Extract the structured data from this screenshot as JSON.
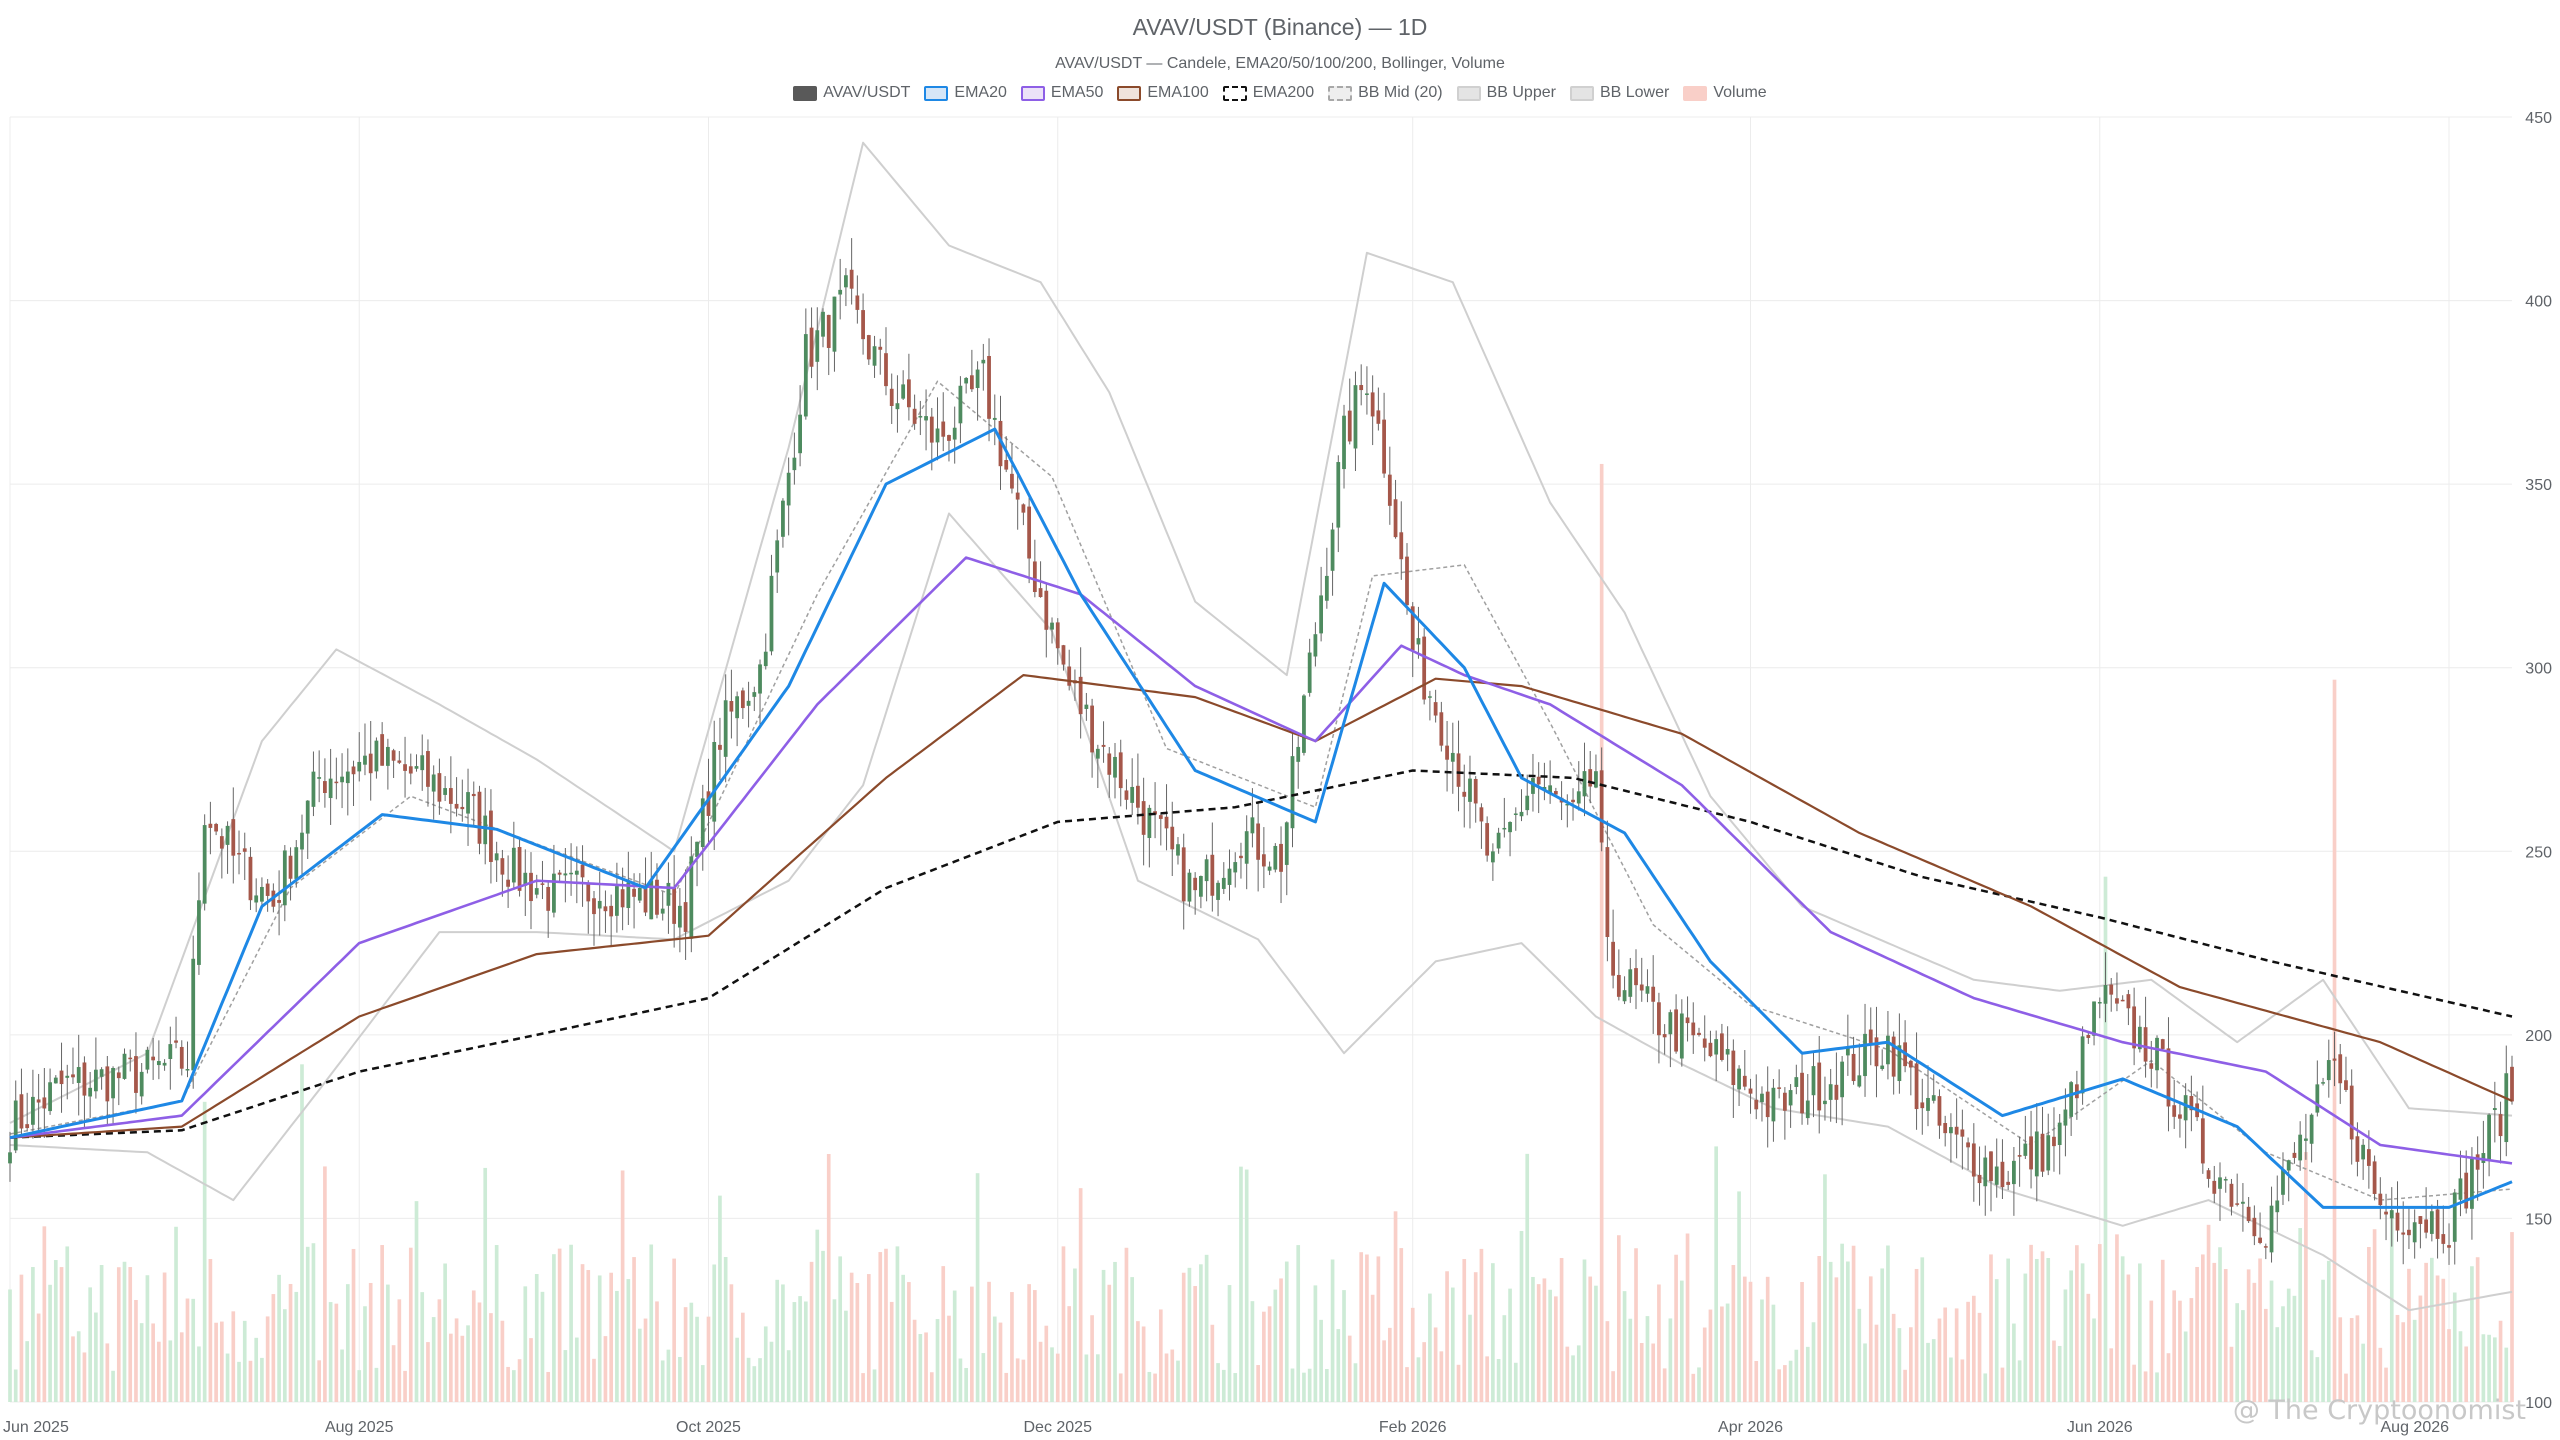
{
  "title": "AVAV/USDT (Binance) — 1D",
  "subtitle": "AVAV/USDT — Candele, EMA20/50/100/200, Bollinger, Volume",
  "watermark": "@ The Cryptoonomist",
  "legend": [
    {
      "label": "AVAV/USDT",
      "kind": "candles",
      "color": "#595959",
      "border": "#595959",
      "dashed": false
    },
    {
      "label": "EMA20",
      "kind": "line",
      "color": "#d6e6f7",
      "border": "#1e88e5",
      "dashed": false
    },
    {
      "label": "EMA50",
      "kind": "line",
      "color": "#ece2f8",
      "border": "#8e5fe6",
      "dashed": false
    },
    {
      "label": "EMA100",
      "kind": "line",
      "color": "#efe3dc",
      "border": "#8b4a2b",
      "dashed": false
    },
    {
      "label": "EMA200",
      "kind": "line",
      "color": "#ffffff",
      "border": "#111111",
      "dashed": true
    },
    {
      "label": "BB Mid (20)",
      "kind": "line",
      "color": "#eeeeee",
      "border": "#a8a8a8",
      "dashed": true
    },
    {
      "label": "BB Upper",
      "kind": "line",
      "color": "#e4e4e4",
      "border": "#d0d0d0",
      "dashed": false
    },
    {
      "label": "BB Lower",
      "kind": "line",
      "color": "#e4e4e4",
      "border": "#d0d0d0",
      "dashed": false
    },
    {
      "label": "Volume",
      "kind": "bar",
      "color": "#f9cfc8",
      "border": "#f9cfc8",
      "dashed": false
    }
  ],
  "colors": {
    "up": "#4e8b5f",
    "down": "#a5574a",
    "wick": "#666666",
    "volume_up": "#cdebd6",
    "volume_down": "#f9cfc8",
    "ema20": "#1e88e5",
    "ema50": "#8e5fe6",
    "ema100": "#8b4a2b",
    "ema200": "#111111",
    "bb_mid": "#a0a0a0",
    "bb_band": "#cfcfcf",
    "grid": "#ececec",
    "axis_text": "#5f6368"
  },
  "chart_data": {
    "type": "candlestick",
    "x_axis": {
      "type": "date",
      "start": "2025-06-01",
      "end": "2026-08-12",
      "tick_labels": [
        "Jun 2025",
        "Aug 2025",
        "Oct 2025",
        "Dec 2025",
        "Feb 2026",
        "Apr 2026",
        "Jun 2026",
        "Aug 2026"
      ]
    },
    "y_axis": {
      "position": "right",
      "ylim": [
        100,
        450
      ],
      "ticks": [
        100,
        150,
        200,
        250,
        300,
        350,
        400,
        450
      ]
    },
    "grid": true,
    "legend_position": "top-center",
    "price_path": [
      [
        "2025-06-01",
        175
      ],
      [
        "2025-06-10",
        186
      ],
      [
        "2025-06-25",
        190
      ],
      [
        "2025-07-02",
        193
      ],
      [
        "2025-07-05",
        262
      ],
      [
        "2025-07-10",
        248
      ],
      [
        "2025-07-17",
        236
      ],
      [
        "2025-07-25",
        270
      ],
      [
        "2025-08-03",
        275
      ],
      [
        "2025-08-12",
        270
      ],
      [
        "2025-08-20",
        262
      ],
      [
        "2025-08-28",
        244
      ],
      [
        "2025-09-04",
        238
      ],
      [
        "2025-09-12",
        240
      ],
      [
        "2025-09-20",
        237
      ],
      [
        "2025-09-27",
        235
      ],
      [
        "2025-10-03",
        282
      ],
      [
        "2025-10-10",
        300
      ],
      [
        "2025-10-18",
        385
      ],
      [
        "2025-10-25",
        400
      ],
      [
        "2025-11-02",
        375
      ],
      [
        "2025-11-10",
        362
      ],
      [
        "2025-11-18",
        378
      ],
      [
        "2025-11-26",
        330
      ],
      [
        "2025-12-03",
        295
      ],
      [
        "2025-12-10",
        275
      ],
      [
        "2025-12-17",
        258
      ],
      [
        "2025-12-25",
        238
      ],
      [
        "2026-01-02",
        255
      ],
      [
        "2026-01-09",
        248
      ],
      [
        "2026-01-13",
        290
      ],
      [
        "2026-01-20",
        362
      ],
      [
        "2026-01-24",
        380
      ],
      [
        "2026-01-28",
        350
      ],
      [
        "2026-02-01",
        305
      ],
      [
        "2026-02-08",
        278
      ],
      [
        "2026-02-15",
        245
      ],
      [
        "2026-02-22",
        270
      ],
      [
        "2026-03-01",
        258
      ],
      [
        "2026-03-05",
        272
      ],
      [
        "2026-03-07",
        220
      ],
      [
        "2026-03-15",
        205
      ],
      [
        "2026-03-25",
        195
      ],
      [
        "2026-04-05",
        180
      ],
      [
        "2026-04-15",
        188
      ],
      [
        "2026-04-25",
        198
      ],
      [
        "2026-05-05",
        172
      ],
      [
        "2026-05-15",
        162
      ],
      [
        "2026-05-25",
        172
      ],
      [
        "2026-06-01",
        210
      ],
      [
        "2026-06-10",
        196
      ],
      [
        "2026-06-20",
        165
      ],
      [
        "2026-06-30",
        148
      ],
      [
        "2026-07-06",
        170
      ],
      [
        "2026-07-12",
        190
      ],
      [
        "2026-07-20",
        153
      ],
      [
        "2026-08-01",
        149
      ],
      [
        "2026-08-12",
        186
      ]
    ],
    "ema20_path": [
      [
        "2025-06-01",
        172
      ],
      [
        "2025-07-01",
        182
      ],
      [
        "2025-07-15",
        235
      ],
      [
        "2025-08-05",
        260
      ],
      [
        "2025-08-25",
        256
      ],
      [
        "2025-09-20",
        240
      ],
      [
        "2025-10-15",
        295
      ],
      [
        "2025-11-01",
        350
      ],
      [
        "2025-11-20",
        365
      ],
      [
        "2025-12-05",
        320
      ],
      [
        "2025-12-25",
        272
      ],
      [
        "2026-01-15",
        258
      ],
      [
        "2026-01-27",
        323
      ],
      [
        "2026-02-10",
        300
      ],
      [
        "2026-02-20",
        270
      ],
      [
        "2026-03-10",
        255
      ],
      [
        "2026-03-25",
        220
      ],
      [
        "2026-04-10",
        195
      ],
      [
        "2026-04-25",
        198
      ],
      [
        "2026-05-15",
        178
      ],
      [
        "2026-06-05",
        188
      ],
      [
        "2026-06-25",
        175
      ],
      [
        "2026-07-10",
        153
      ],
      [
        "2026-08-01",
        153
      ],
      [
        "2026-08-12",
        160
      ]
    ],
    "ema50_path": [
      [
        "2025-06-01",
        172
      ],
      [
        "2025-07-01",
        178
      ],
      [
        "2025-08-01",
        225
      ],
      [
        "2025-09-01",
        242
      ],
      [
        "2025-09-25",
        240
      ],
      [
        "2025-10-20",
        290
      ],
      [
        "2025-11-15",
        330
      ],
      [
        "2025-12-05",
        320
      ],
      [
        "2025-12-25",
        295
      ],
      [
        "2026-01-15",
        280
      ],
      [
        "2026-01-30",
        306
      ],
      [
        "2026-02-10",
        298
      ],
      [
        "2026-02-25",
        290
      ],
      [
        "2026-03-20",
        268
      ],
      [
        "2026-04-15",
        228
      ],
      [
        "2026-05-10",
        210
      ],
      [
        "2026-06-05",
        198
      ],
      [
        "2026-06-30",
        190
      ],
      [
        "2026-07-20",
        170
      ],
      [
        "2026-08-12",
        165
      ]
    ],
    "ema100_path": [
      [
        "2025-06-01",
        172
      ],
      [
        "2025-07-01",
        175
      ],
      [
        "2025-08-01",
        205
      ],
      [
        "2025-09-01",
        222
      ],
      [
        "2025-10-01",
        227
      ],
      [
        "2025-11-01",
        270
      ],
      [
        "2025-11-25",
        298
      ],
      [
        "2025-12-25",
        292
      ],
      [
        "2026-01-15",
        280
      ],
      [
        "2026-02-05",
        297
      ],
      [
        "2026-02-20",
        295
      ],
      [
        "2026-03-20",
        282
      ],
      [
        "2026-04-20",
        255
      ],
      [
        "2026-05-20",
        235
      ],
      [
        "2026-06-15",
        213
      ],
      [
        "2026-07-20",
        198
      ],
      [
        "2026-08-12",
        182
      ]
    ],
    "ema200_path": [
      [
        "2025-06-01",
        172
      ],
      [
        "2025-07-01",
        174
      ],
      [
        "2025-08-01",
        190
      ],
      [
        "2025-09-01",
        200
      ],
      [
        "2025-10-01",
        210
      ],
      [
        "2025-11-01",
        240
      ],
      [
        "2025-12-01",
        258
      ],
      [
        "2026-01-01",
        262
      ],
      [
        "2026-02-01",
        272
      ],
      [
        "2026-03-01",
        270
      ],
      [
        "2026-04-01",
        258
      ],
      [
        "2026-05-01",
        243
      ],
      [
        "2026-06-01",
        232
      ],
      [
        "2026-07-01",
        220
      ],
      [
        "2026-08-12",
        205
      ]
    ],
    "bb_mid_path": [
      [
        "2025-06-01",
        173
      ],
      [
        "2025-07-01",
        182
      ],
      [
        "2025-07-20",
        240
      ],
      [
        "2025-08-10",
        265
      ],
      [
        "2025-09-01",
        252
      ],
      [
        "2025-09-25",
        238
      ],
      [
        "2025-10-20",
        320
      ],
      [
        "2025-11-10",
        378
      ],
      [
        "2025-11-30",
        352
      ],
      [
        "2025-12-20",
        278
      ],
      [
        "2026-01-15",
        262
      ],
      [
        "2026-01-25",
        325
      ],
      [
        "2026-02-10",
        328
      ],
      [
        "2026-02-25",
        285
      ],
      [
        "2026-03-15",
        230
      ],
      [
        "2026-04-01",
        208
      ],
      [
        "2026-04-25",
        196
      ],
      [
        "2026-05-20",
        170
      ],
      [
        "2026-06-10",
        193
      ],
      [
        "2026-06-30",
        168
      ],
      [
        "2026-07-20",
        155
      ],
      [
        "2026-08-12",
        158
      ]
    ],
    "bb_upper_path": [
      [
        "2025-06-01",
        176
      ],
      [
        "2025-06-25",
        195
      ],
      [
        "2025-07-15",
        280
      ],
      [
        "2025-07-28",
        305
      ],
      [
        "2025-08-15",
        290
      ],
      [
        "2025-09-01",
        275
      ],
      [
        "2025-09-25",
        250
      ],
      [
        "2025-10-15",
        360
      ],
      [
        "2025-10-28",
        443
      ],
      [
        "2025-11-12",
        415
      ],
      [
        "2025-11-28",
        405
      ],
      [
        "2025-12-10",
        375
      ],
      [
        "2025-12-25",
        318
      ],
      [
        "2026-01-10",
        298
      ],
      [
        "2026-01-24",
        413
      ],
      [
        "2026-02-08",
        405
      ],
      [
        "2026-02-25",
        345
      ],
      [
        "2026-03-10",
        315
      ],
      [
        "2026-03-25",
        265
      ],
      [
        "2026-04-10",
        235
      ],
      [
        "2026-04-25",
        225
      ],
      [
        "2026-05-10",
        215
      ],
      [
        "2026-05-25",
        212
      ],
      [
        "2026-06-10",
        215
      ],
      [
        "2026-06-25",
        198
      ],
      [
        "2026-07-10",
        215
      ],
      [
        "2026-07-25",
        180
      ],
      [
        "2026-08-12",
        178
      ]
    ],
    "bb_lower_path": [
      [
        "2025-06-01",
        170
      ],
      [
        "2025-06-25",
        168
      ],
      [
        "2025-07-10",
        155
      ],
      [
        "2025-07-25",
        185
      ],
      [
        "2025-08-15",
        228
      ],
      [
        "2025-09-01",
        228
      ],
      [
        "2025-09-25",
        226
      ],
      [
        "2025-10-15",
        242
      ],
      [
        "2025-10-28",
        268
      ],
      [
        "2025-11-12",
        342
      ],
      [
        "2025-11-30",
        310
      ],
      [
        "2025-12-15",
        242
      ],
      [
        "2026-01-05",
        226
      ],
      [
        "2026-01-20",
        195
      ],
      [
        "2026-02-05",
        220
      ],
      [
        "2026-02-20",
        225
      ],
      [
        "2026-03-05",
        205
      ],
      [
        "2026-03-20",
        192
      ],
      [
        "2026-04-05",
        180
      ],
      [
        "2026-04-25",
        175
      ],
      [
        "2026-05-15",
        158
      ],
      [
        "2026-06-05",
        148
      ],
      [
        "2026-06-20",
        155
      ],
      [
        "2026-07-10",
        140
      ],
      [
        "2026-07-25",
        125
      ],
      [
        "2026-08-12",
        130
      ]
    ],
    "volume_scale": {
      "max_height_fraction_of_price_axis": 0.73
    },
    "volume_spikes": [
      [
        "2026-03-06",
        1.0,
        "down"
      ],
      [
        "2026-07-12",
        0.77,
        "down"
      ],
      [
        "2026-06-02",
        0.56,
        "up"
      ],
      [
        "2025-10-03",
        0.22,
        "up"
      ],
      [
        "2025-07-05",
        0.32,
        "up"
      ],
      [
        "2025-07-22",
        0.36,
        "up"
      ]
    ]
  }
}
